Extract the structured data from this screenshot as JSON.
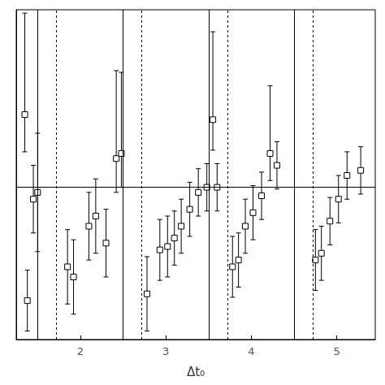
{
  "chart_data": {
    "type": "scatter",
    "xlabel": "Δt₀",
    "xlim": [
      1.25,
      5.45
    ],
    "ylim": [
      -0.95,
      1.0
    ],
    "xticks": [
      2,
      3,
      4,
      5
    ],
    "yticks": [],
    "tick_labels": "x",
    "grid": false,
    "marker": "square",
    "color": "#000000",
    "hline": -0.05,
    "vlines_solid": [
      1.5,
      2.5,
      3.5,
      4.5
    ],
    "vlines_dashed": [
      1.72,
      2.72,
      3.72,
      4.72
    ],
    "x": [
      1.35,
      1.45,
      1.5,
      1.38,
      1.85,
      1.92,
      2.1,
      2.18,
      2.3,
      2.42,
      2.48,
      2.78,
      2.93,
      3.02,
      3.1,
      3.18,
      3.28,
      3.38,
      3.48,
      3.55,
      3.6,
      3.78,
      3.85,
      3.93,
      4.02,
      4.12,
      4.22,
      4.3,
      4.75,
      4.82,
      4.92,
      5.02,
      5.12,
      5.28
    ],
    "values": [
      0.38,
      -0.12,
      -0.08,
      -0.72,
      -0.52,
      -0.58,
      -0.28,
      -0.22,
      -0.38,
      0.12,
      0.15,
      -0.68,
      -0.42,
      -0.4,
      -0.35,
      -0.28,
      -0.18,
      -0.08,
      -0.05,
      0.35,
      -0.05,
      -0.52,
      -0.48,
      -0.28,
      -0.2,
      -0.1,
      0.15,
      0.08,
      -0.48,
      -0.44,
      -0.25,
      -0.12,
      0.02,
      0.05
    ],
    "yerr_lo": [
      0.22,
      0.2,
      0.35,
      0.18,
      0.22,
      0.22,
      0.2,
      0.22,
      0.2,
      0.2,
      0.2,
      0.22,
      0.18,
      0.18,
      0.16,
      0.16,
      0.16,
      0.14,
      0.14,
      0.18,
      0.14,
      0.18,
      0.16,
      0.16,
      0.16,
      0.14,
      0.16,
      0.14,
      0.18,
      0.16,
      0.14,
      0.14,
      0.14,
      0.14
    ],
    "yerr_hi": [
      0.6,
      0.2,
      0.35,
      0.18,
      0.22,
      0.22,
      0.2,
      0.22,
      0.2,
      0.52,
      0.48,
      0.22,
      0.18,
      0.18,
      0.16,
      0.16,
      0.16,
      0.14,
      0.14,
      0.52,
      0.14,
      0.18,
      0.16,
      0.16,
      0.16,
      0.14,
      0.4,
      0.14,
      0.18,
      0.16,
      0.14,
      0.14,
      0.14,
      0.14
    ]
  }
}
